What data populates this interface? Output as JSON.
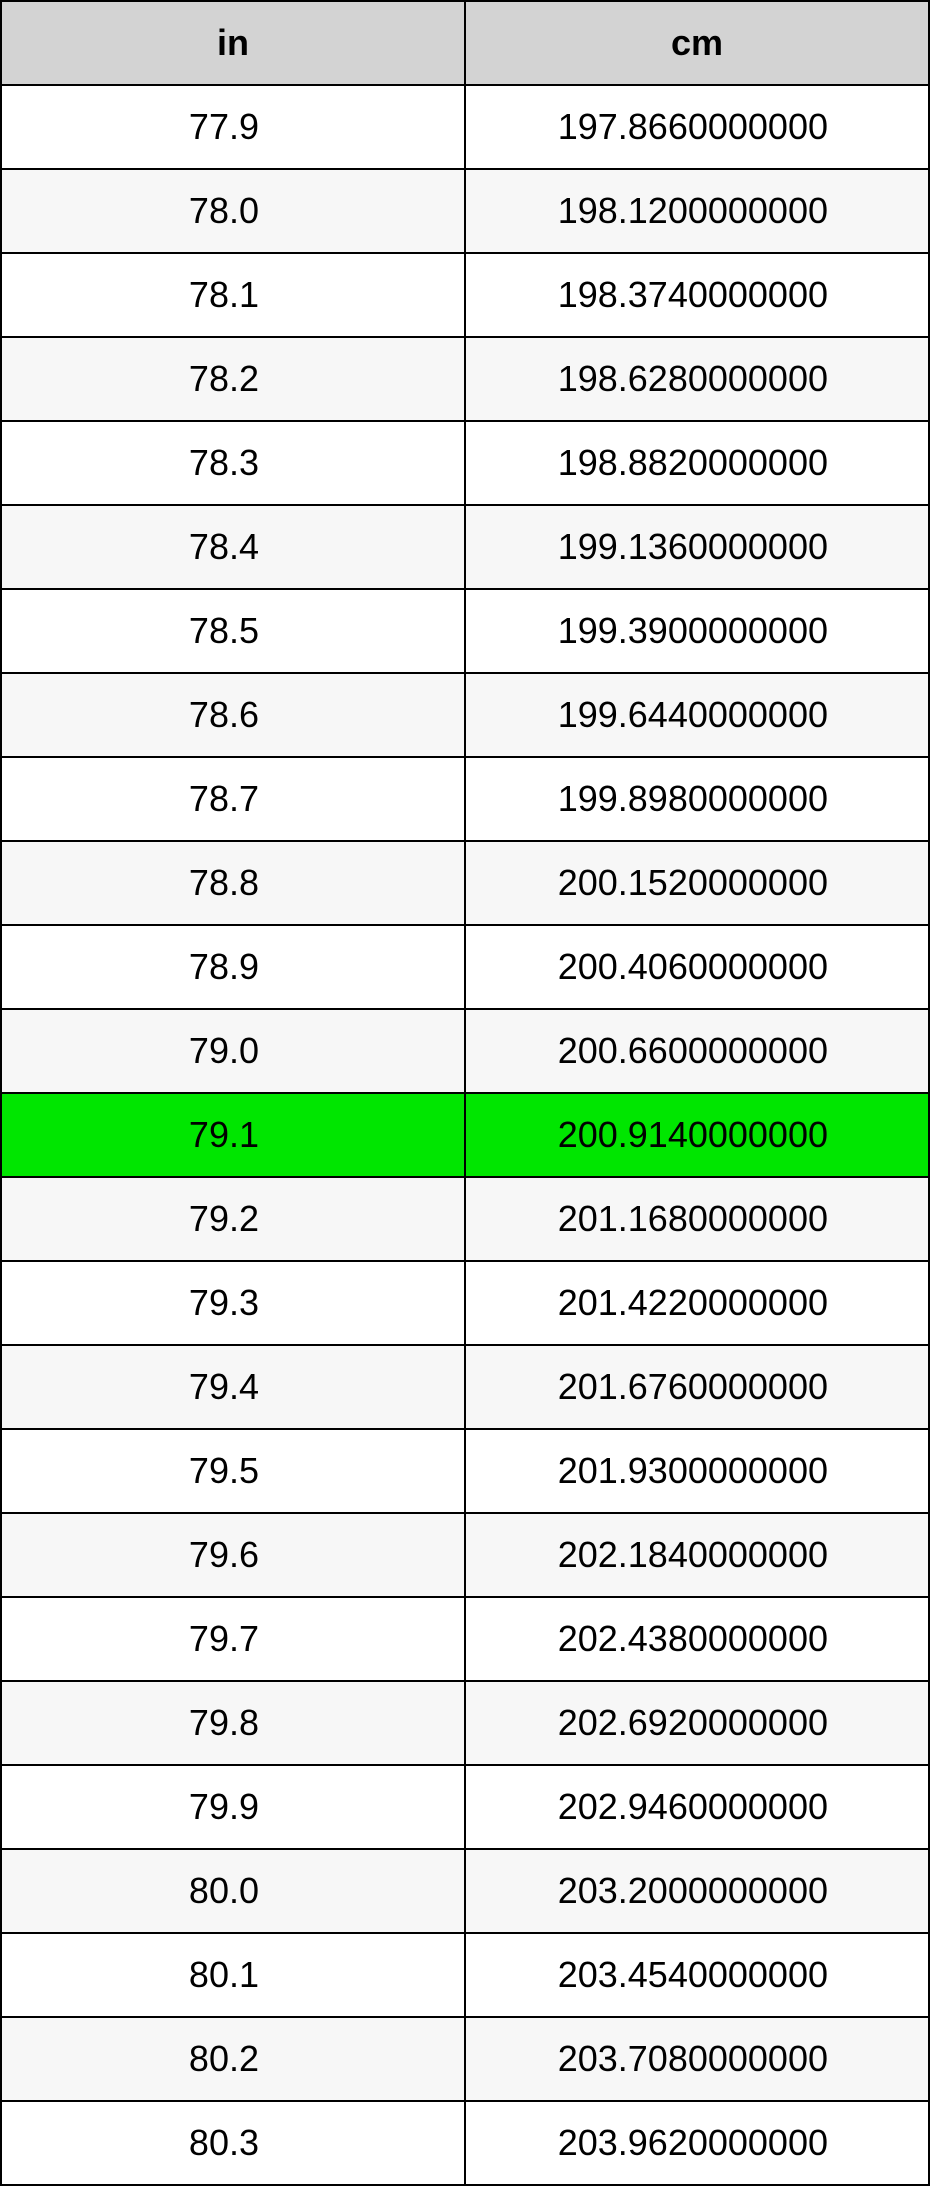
{
  "table": {
    "type": "table",
    "header_background": "#d3d3d3",
    "row_alt_background": "#f7f7f7",
    "row_background": "#ffffff",
    "highlight_background": "#00e600",
    "highlight_index": 12,
    "border_color": "#000000",
    "header_fontsize": 36,
    "cell_fontsize": 36,
    "columns": [
      {
        "key": "in",
        "label": "in",
        "align": "right"
      },
      {
        "key": "cm",
        "label": "cm",
        "align": "right"
      }
    ],
    "rows": [
      {
        "in": "77.9",
        "cm": "197.8660000000"
      },
      {
        "in": "78.0",
        "cm": "198.1200000000"
      },
      {
        "in": "78.1",
        "cm": "198.3740000000"
      },
      {
        "in": "78.2",
        "cm": "198.6280000000"
      },
      {
        "in": "78.3",
        "cm": "198.8820000000"
      },
      {
        "in": "78.4",
        "cm": "199.1360000000"
      },
      {
        "in": "78.5",
        "cm": "199.3900000000"
      },
      {
        "in": "78.6",
        "cm": "199.6440000000"
      },
      {
        "in": "78.7",
        "cm": "199.8980000000"
      },
      {
        "in": "78.8",
        "cm": "200.1520000000"
      },
      {
        "in": "78.9",
        "cm": "200.4060000000"
      },
      {
        "in": "79.0",
        "cm": "200.6600000000"
      },
      {
        "in": "79.1",
        "cm": "200.9140000000"
      },
      {
        "in": "79.2",
        "cm": "201.1680000000"
      },
      {
        "in": "79.3",
        "cm": "201.4220000000"
      },
      {
        "in": "79.4",
        "cm": "201.6760000000"
      },
      {
        "in": "79.5",
        "cm": "201.9300000000"
      },
      {
        "in": "79.6",
        "cm": "202.1840000000"
      },
      {
        "in": "79.7",
        "cm": "202.4380000000"
      },
      {
        "in": "79.8",
        "cm": "202.6920000000"
      },
      {
        "in": "79.9",
        "cm": "202.9460000000"
      },
      {
        "in": "80.0",
        "cm": "203.2000000000"
      },
      {
        "in": "80.1",
        "cm": "203.4540000000"
      },
      {
        "in": "80.2",
        "cm": "203.7080000000"
      },
      {
        "in": "80.3",
        "cm": "203.9620000000"
      }
    ]
  }
}
